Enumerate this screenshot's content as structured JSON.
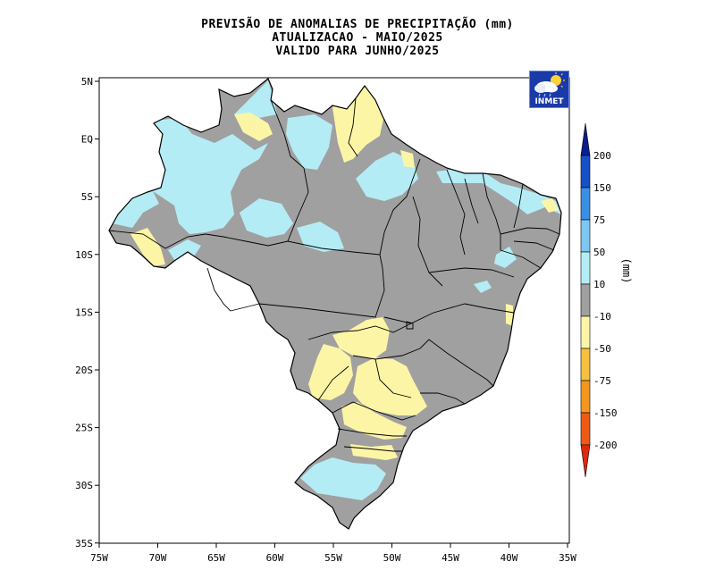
{
  "title": {
    "line1": "PREVISÃO DE ANOMALIAS DE PRECIPITAÇÃO (mm)",
    "line2": "ATUALIZACAO - MAIO/2025",
    "line3": "VALIDO PARA JUNHO/2025"
  },
  "logo": {
    "text": "INMET",
    "icon": "cloud-sun-rain-icon"
  },
  "axes": {
    "y_ticks": [
      "5N",
      "EQ",
      "5S",
      "10S",
      "15S",
      "20S",
      "25S",
      "30S",
      "35S"
    ],
    "x_ticks": [
      "75W",
      "70W",
      "65W",
      "60W",
      "55W",
      "50W",
      "45W",
      "40W",
      "35W"
    ]
  },
  "colorbar": {
    "unit": "(mm)",
    "levels": [
      "200",
      "150",
      "75",
      "50",
      "10",
      "-10",
      "-50",
      "-75",
      "-150",
      "-200"
    ],
    "colors": {
      "above_200": "#0a1e8c",
      "150_200": "#1550c8",
      "75_150": "#3a8ee6",
      "50_75": "#7cc8f2",
      "10_50": "#b4ecf6",
      "neutral": "#a0a0a0",
      "m50_m10": "#fdf5a6",
      "m75_m50": "#f6c040",
      "m150_m75": "#f4961e",
      "m200_m150": "#ee5a14",
      "below_m200": "#e02810"
    }
  },
  "map_colors": {
    "neutral": "#a0a0a0",
    "positive": "#b4ecf6",
    "negative": "#fdf5a6",
    "border": "#000000"
  }
}
